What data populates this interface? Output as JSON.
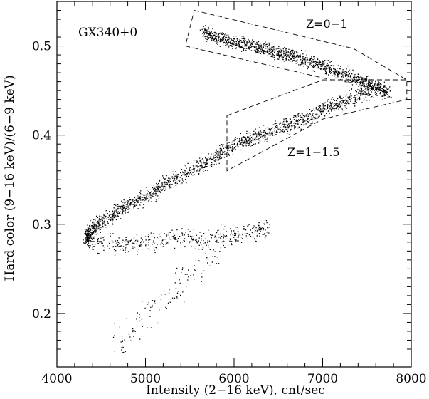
{
  "chart_data": {
    "type": "scatter",
    "title": "",
    "xlabel": "Intensity (2−16 keV), cnt/sec",
    "ylabel": "Hard color (9−16 keV)/(6−9 keV)",
    "xlim": [
      4000,
      8000
    ],
    "ylim": [
      0.14,
      0.55
    ],
    "x_ticks": [
      4000,
      5000,
      6000,
      7000,
      8000
    ],
    "y_ticks": [
      0.2,
      0.3,
      0.4,
      0.5
    ],
    "x_tick_labels": [
      "4000",
      "5000",
      "6000",
      "7000",
      "8000"
    ],
    "y_tick_labels": [
      "0.2",
      "0.3",
      "0.4",
      "0.5"
    ],
    "grid": false,
    "point_color": "#000000",
    "annotations": {
      "source": "GX340+0",
      "region_upper": "Z=0−1",
      "region_lower": "Z=1−1.5"
    },
    "series": [
      {
        "approximate_track": true,
        "segments": [
          {
            "branch": "upper horizontal",
            "x": [
              5650,
              5800,
              6000,
              6200,
              6400,
              6600,
              6800,
              7000,
              7200,
              7400,
              7600,
              7750
            ],
            "y": [
              0.515,
              0.51,
              0.505,
              0.5,
              0.495,
              0.49,
              0.485,
              0.478,
              0.47,
              0.462,
              0.455,
              0.448
            ]
          },
          {
            "branch": "normal",
            "x": [
              7600,
              7400,
              7200,
              7000,
              6800,
              6600,
              6400,
              6200,
              6000,
              5800,
              5600,
              5400,
              5200,
              5000,
              4800,
              4600,
              4450,
              4350,
              4330
            ],
            "y": [
              0.455,
              0.445,
              0.437,
              0.43,
              0.42,
              0.412,
              0.405,
              0.397,
              0.39,
              0.378,
              0.365,
              0.355,
              0.345,
              0.332,
              0.322,
              0.31,
              0.3,
              0.29,
              0.283
            ]
          },
          {
            "branch": "lower loop",
            "x": [
              4330,
              4500,
              4800,
              5100,
              5400,
              5700,
              6000,
              6200,
              6350
            ],
            "y": [
              0.283,
              0.279,
              0.279,
              0.281,
              0.283,
              0.285,
              0.289,
              0.293,
              0.297
            ]
          },
          {
            "branch": "flaring",
            "x": [
              5850,
              5700,
              5550,
              5400,
              5250,
              5100,
              4950,
              4800,
              4700
            ],
            "y": [
              0.28,
              0.262,
              0.248,
              0.234,
              0.22,
              0.206,
              0.192,
              0.178,
              0.165
            ]
          }
        ]
      }
    ],
    "regions": [
      {
        "label": "Z=0−1",
        "polygon": [
          [
            5550,
            0.54
          ],
          [
            7350,
            0.497
          ],
          [
            7950,
            0.462
          ],
          [
            7100,
            0.462
          ],
          [
            5450,
            0.5
          ]
        ]
      },
      {
        "label": "Z=1−1.5",
        "polygon": [
          [
            5920,
            0.422
          ],
          [
            7000,
            0.462
          ],
          [
            7950,
            0.462
          ],
          [
            7950,
            0.44
          ],
          [
            7000,
            0.418
          ],
          [
            5920,
            0.36
          ]
        ]
      }
    ]
  }
}
